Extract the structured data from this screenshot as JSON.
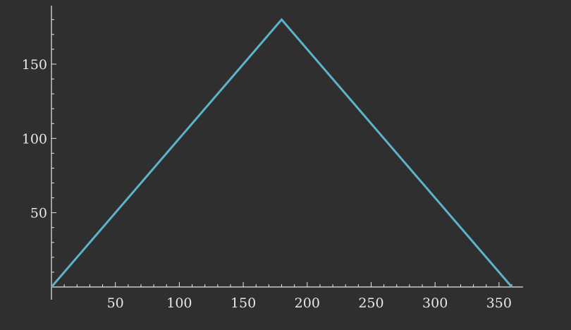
{
  "chart_data": {
    "type": "line",
    "title": "",
    "xlabel": "",
    "ylabel": "",
    "xlim": [
      0,
      365
    ],
    "ylim": [
      0,
      180
    ],
    "xticks": [
      50,
      100,
      150,
      200,
      250,
      300,
      350
    ],
    "yticks": [
      50,
      100,
      150
    ],
    "xtick_labels": [
      "50",
      "100",
      "150",
      "200",
      "250",
      "300",
      "350"
    ],
    "ytick_labels": [
      "50",
      "100",
      "150"
    ],
    "grid": false,
    "background_color": "#2f2f2f",
    "axis_color": "#e8e8e8",
    "series": [
      {
        "color": "#5cb3cc",
        "x": [
          0,
          180,
          360
        ],
        "y": [
          0,
          180,
          0
        ]
      }
    ]
  }
}
